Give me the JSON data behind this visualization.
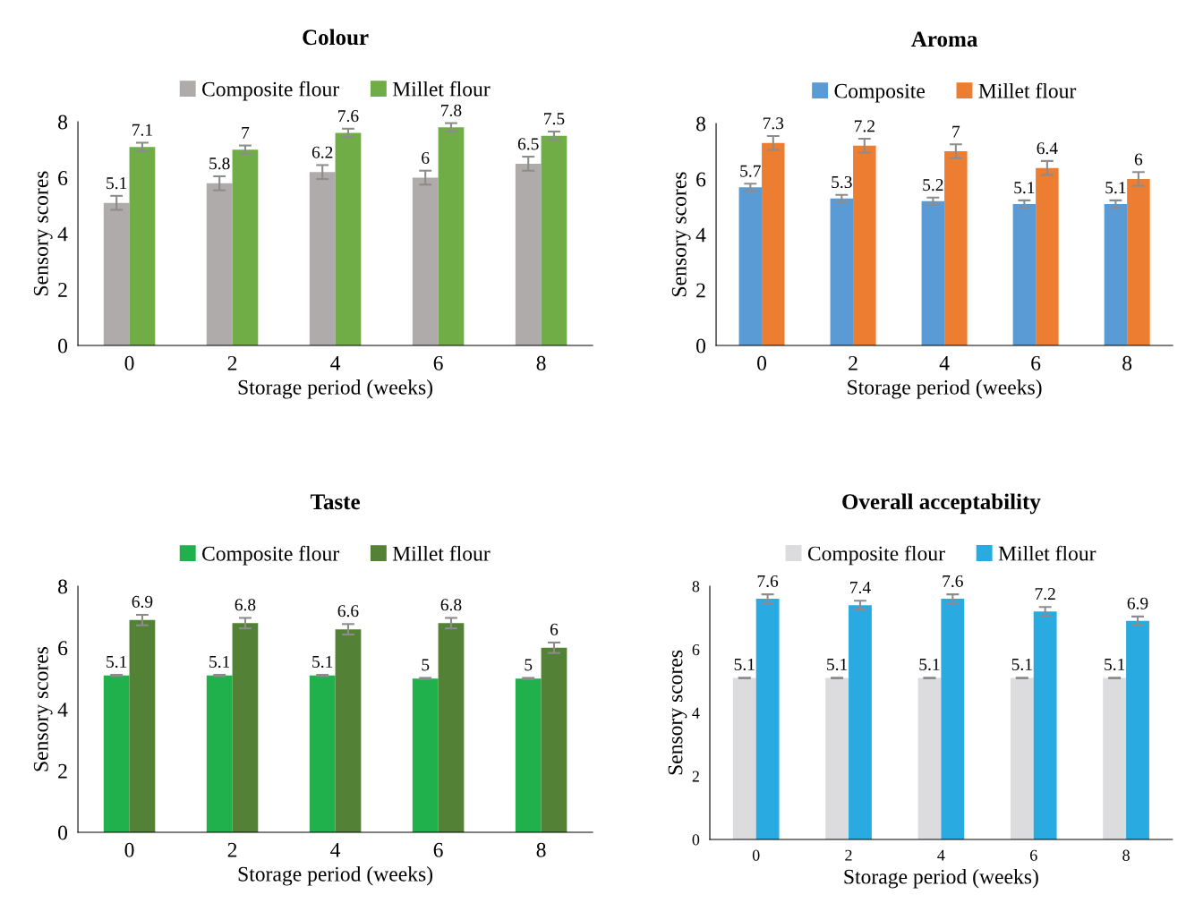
{
  "chart_data": [
    {
      "type": "bar",
      "title": "Colour",
      "xlabel": "Storage period (weeks)",
      "ylabel": "Sensory scores",
      "categories": [
        "0",
        "2",
        "4",
        "6",
        "8"
      ],
      "ylim": [
        0,
        8
      ],
      "yticks": [
        0,
        2,
        4,
        6,
        8
      ],
      "legend": "top",
      "data_labels": true,
      "grid": false,
      "series": [
        {
          "name": "Composite flour",
          "color": "#afabab",
          "values": [
            5.1,
            5.8,
            6.2,
            6.0,
            6.5
          ],
          "errors": [
            0.25,
            0.25,
            0.25,
            0.25,
            0.25
          ]
        },
        {
          "name": "Millet flour",
          "color": "#70ad47",
          "values": [
            7.1,
            7.0,
            7.6,
            7.8,
            7.5
          ],
          "errors": [
            0.15,
            0.15,
            0.15,
            0.15,
            0.15
          ]
        }
      ]
    },
    {
      "type": "bar",
      "title": "Aroma",
      "xlabel": "Storage period (weeks)",
      "ylabel": "Sensory scores",
      "categories": [
        "0",
        "2",
        "4",
        "6",
        "8"
      ],
      "ylim": [
        0,
        8
      ],
      "yticks": [
        0,
        2,
        4,
        6,
        8
      ],
      "legend": "top",
      "data_labels": true,
      "grid": false,
      "series": [
        {
          "name": "Composite",
          "color": "#5b9bd5",
          "values": [
            5.7,
            5.3,
            5.2,
            5.1,
            5.1
          ],
          "errors": [
            0.13,
            0.13,
            0.13,
            0.13,
            0.13
          ]
        },
        {
          "name": "Millet flour",
          "color": "#ed7d31",
          "values": [
            7.3,
            7.2,
            7.0,
            6.4,
            6.0
          ],
          "errors": [
            0.25,
            0.25,
            0.25,
            0.25,
            0.25
          ]
        }
      ]
    },
    {
      "type": "bar",
      "title": "Taste",
      "xlabel": "Storage period (weeks)",
      "ylabel": "Sensory scores",
      "categories": [
        "0",
        "2",
        "4",
        "6",
        "8"
      ],
      "ylim": [
        0,
        8
      ],
      "yticks": [
        0,
        2,
        4,
        6,
        8
      ],
      "legend": "top",
      "data_labels": true,
      "grid": false,
      "series": [
        {
          "name": "Composite flour",
          "color": "#20b14c",
          "values": [
            5.1,
            5.1,
            5.1,
            5.0,
            5.0
          ],
          "errors": [
            0.02,
            0.02,
            0.02,
            0.02,
            0.02
          ]
        },
        {
          "name": "Millet flour",
          "color": "#538135",
          "values": [
            6.9,
            6.8,
            6.6,
            6.8,
            6.0
          ],
          "errors": [
            0.17,
            0.17,
            0.17,
            0.17,
            0.17
          ]
        }
      ]
    },
    {
      "type": "bar",
      "title": "Overall acceptability",
      "xlabel": "Storage period (weeks)",
      "ylabel": "Sensory scores",
      "categories": [
        "0",
        "2",
        "4",
        "6",
        "8"
      ],
      "ylim": [
        0,
        8
      ],
      "yticks": [
        0,
        2,
        4,
        6,
        8
      ],
      "legend": "top",
      "data_labels": true,
      "grid": false,
      "series": [
        {
          "name": "Composite flour",
          "color": "#dcdcde",
          "values": [
            5.1,
            5.1,
            5.1,
            5.1,
            5.1
          ],
          "errors": [
            0.01,
            0.01,
            0.01,
            0.01,
            0.01
          ]
        },
        {
          "name": "Millet flour",
          "color": "#29abe2",
          "values": [
            7.6,
            7.4,
            7.6,
            7.2,
            6.9
          ],
          "errors": [
            0.14,
            0.14,
            0.14,
            0.14,
            0.14
          ]
        }
      ]
    }
  ]
}
